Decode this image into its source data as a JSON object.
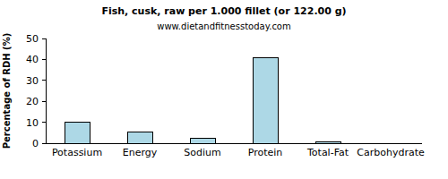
{
  "chart_data": {
    "type": "bar",
    "title": "Fish, cusk, raw per 1.000 fillet (or 122.00 g)",
    "subtitle": "www.dietandfitnesstoday.com",
    "y_label": "Percentage of RDH (%)",
    "categories": [
      "Potassium",
      "Energy",
      "Sodium",
      "Protein",
      "Total-Fat",
      "Carbohydrate"
    ],
    "values": [
      10,
      5.2,
      2.2,
      41,
      0.8,
      0
    ],
    "color": "#add8e6",
    "ylim": [
      0,
      50
    ],
    "yticks": [
      0,
      10,
      20,
      30,
      40,
      50
    ],
    "grid": false
  }
}
